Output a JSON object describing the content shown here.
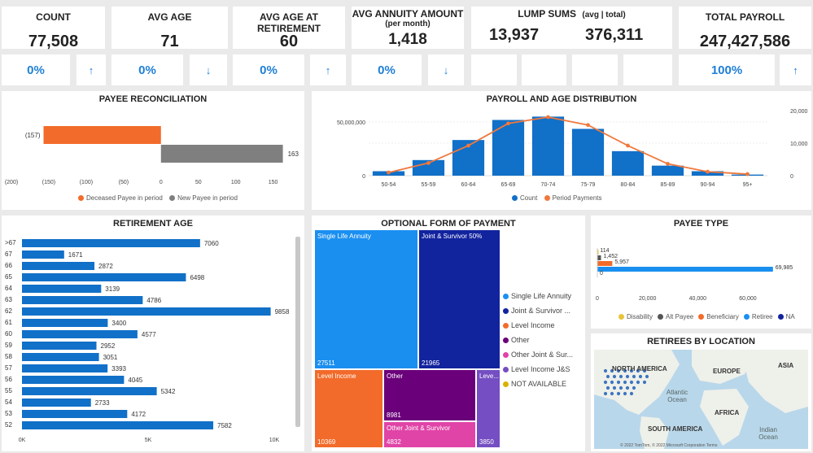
{
  "kpis": {
    "count": {
      "title": "COUNT",
      "value": "77,508",
      "pct": "0%",
      "arrow": "↑"
    },
    "avg_age": {
      "title": "AVG AGE",
      "value": "71",
      "pct": "0%",
      "arrow": "↓"
    },
    "avg_age_ret": {
      "title": "AVG AGE AT RETIREMENT",
      "value": "60",
      "pct": "0%",
      "arrow": "↑"
    },
    "avg_annuity": {
      "title": "AVG ANNUITY AMOUNT",
      "subtitle": "(per month)",
      "value": "1,418",
      "pct": "0%",
      "arrow": "↓"
    },
    "lump_sums": {
      "title": "LUMP SUMS",
      "subtitle": "(avg | total)",
      "avg": "13,937",
      "total": "376,311"
    },
    "total_payroll": {
      "title": "TOTAL PAYROLL",
      "value": "247,427,586",
      "pct": "100%",
      "arrow": "↑"
    }
  },
  "payee_reconciliation": {
    "title": "PAYEE RECONCILIATION",
    "legend": [
      "Deceased Payee in period",
      "New Payee in period"
    ],
    "colors": [
      "#f26b2a",
      "#7f7f7f"
    ]
  },
  "payroll_age": {
    "title": "PAYROLL AND AGE DISTRIBUTION",
    "legend": [
      "Count",
      "Period Payments"
    ],
    "left_ticks": [
      "50,000,000",
      "0"
    ],
    "right_ticks": [
      "20,000",
      "10,000",
      "0"
    ]
  },
  "retirement_age": {
    "title": "RETIREMENT AGE",
    "x_ticks": [
      "0K",
      "5K",
      "10K"
    ]
  },
  "optional_form": {
    "title": "OPTIONAL FORM OF PAYMENT",
    "legend": [
      "Single Life Annuity",
      "Joint & Survivor ...",
      "Level Income",
      "Other",
      "Other Joint & Sur...",
      "Level Income J&S",
      "NOT AVAILABLE"
    ],
    "legend_colors": [
      "#1a8ff0",
      "#12239e",
      "#f26b2a",
      "#6b007b",
      "#e044a7",
      "#744ec2",
      "#d9b300"
    ]
  },
  "payee_type": {
    "title": "PAYEE TYPE",
    "legend": [
      "Disability",
      "Alt Payee",
      "Beneficiary",
      "Retiree",
      "NA"
    ],
    "legend_colors": [
      "#e8c43b",
      "#555555",
      "#f26b2a",
      "#1a8ff0",
      "#12239e"
    ],
    "x_ticks": [
      "0",
      "20,000",
      "40,000",
      "60,000"
    ]
  },
  "map": {
    "title": "RETIREES BY LOCATION",
    "labels": [
      "NORTH AMERICA",
      "EUROPE",
      "ASIA",
      "Atlantic Ocean",
      "AFRICA",
      "SOUTH AMERICA",
      "Indian Ocean"
    ],
    "footer": "© 2022 TomTom, © 2022 Microsoft Corporation  Terms"
  },
  "chart_data": [
    {
      "type": "bar",
      "title": "PAYEE RECONCILIATION",
      "categories": [
        "Deceased Payee in period",
        "New Payee in period"
      ],
      "values": [
        -157,
        163
      ],
      "data_labels": [
        "(157)",
        "163"
      ],
      "x_ticks": [
        "(200)",
        "(150)",
        "(100)",
        "(50)",
        "0",
        "50",
        "100",
        "150"
      ],
      "xlim": [
        -200,
        170
      ]
    },
    {
      "type": "bar",
      "title": "PAYROLL AND AGE DISTRIBUTION",
      "categories": [
        "50-54",
        "55-59",
        "60-64",
        "65-69",
        "70-74",
        "75-79",
        "80-84",
        "85-89",
        "90-94",
        "95+"
      ],
      "series": [
        {
          "name": "Count",
          "type": "bar",
          "values": [
            2000,
            7000,
            16000,
            25000,
            26500,
            21000,
            11000,
            4500,
            2000,
            500
          ]
        },
        {
          "name": "Period Payments",
          "type": "line",
          "values": [
            2000,
            8000,
            19000,
            33000,
            37000,
            32000,
            19000,
            7500,
            2500,
            1000
          ]
        }
      ]
    },
    {
      "type": "bar",
      "title": "RETIREMENT AGE",
      "categories": [
        ">67",
        "67",
        "66",
        "65",
        "64",
        "63",
        "62",
        "61",
        "60",
        "59",
        "58",
        "57",
        "56",
        "55",
        "54",
        "53",
        "52"
      ],
      "values": [
        7060,
        1671,
        2872,
        6498,
        3139,
        4786,
        9858,
        3400,
        4577,
        2952,
        3051,
        3393,
        4045,
        5342,
        2733,
        4172,
        7582
      ],
      "xlim": [
        0,
        10000
      ]
    },
    {
      "type": "treemap",
      "title": "OPTIONAL FORM OF PAYMENT",
      "categories": [
        "Single Life Annuity",
        "Joint & Survivor 50%",
        "Level Income",
        "Other",
        "Other Joint & Survivor",
        "Leve..."
      ],
      "values": [
        27511,
        21965,
        10369,
        8981,
        4832,
        3850
      ]
    },
    {
      "type": "bar",
      "title": "PAYEE TYPE",
      "categories": [
        "Disability",
        "Alt Payee",
        "Beneficiary",
        "Retiree",
        "NA"
      ],
      "values": [
        114,
        1452,
        5957,
        69985,
        0
      ],
      "data_labels": [
        "114",
        "1,452",
        "5,957",
        "69,985",
        "0"
      ],
      "xlim": [
        0,
        72000
      ]
    }
  ]
}
